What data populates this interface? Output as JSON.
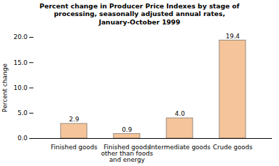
{
  "chart_data": {
    "type": "bar",
    "title": "Percent change in Producer Price Indexes by stage of\nprocessing, seasonally adjusted annual rates,\nJanuary-October 1999",
    "categories": [
      "Finished goods",
      "Finished goods\nother than foods\nand energy",
      "Intermediate goods",
      "Crude goods"
    ],
    "values": [
      2.9,
      0.9,
      4.0,
      19.4
    ],
    "value_labels": [
      "2.9",
      "0.9",
      "4.0",
      "19.4"
    ],
    "color": "#F5C49A",
    "ylabel": "Percent change",
    "ylim": [
      0,
      20.0
    ],
    "yticks": [
      {
        "value": 0.0,
        "label": "0.0"
      },
      {
        "value": 5.0,
        "label": "5.0"
      },
      {
        "value": 10.0,
        "label": "10.0"
      },
      {
        "value": 15.0,
        "label": "15.0"
      },
      {
        "value": 20.0,
        "label": "20.0"
      }
    ],
    "data_labels": true,
    "grid": false
  }
}
